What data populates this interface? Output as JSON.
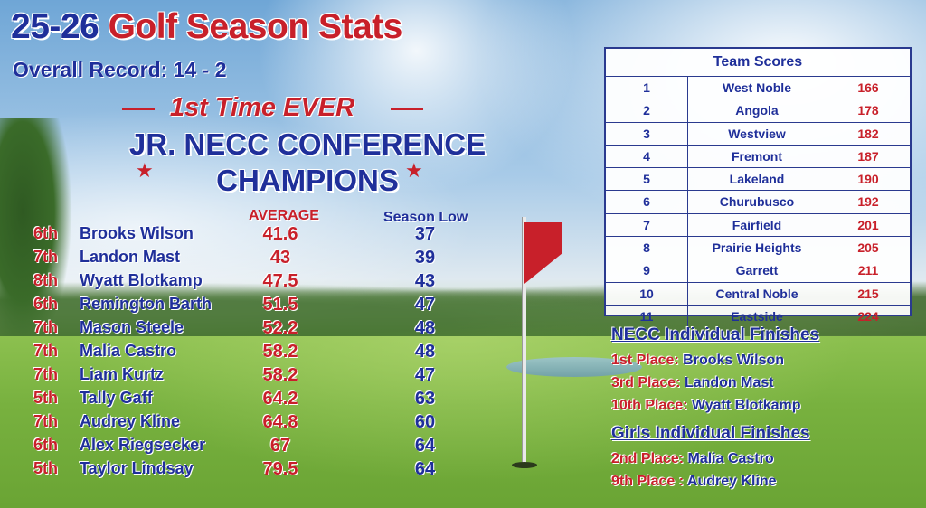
{
  "header": {
    "title_year": "25-26",
    "title_main": "Golf Season Stats",
    "record": "Overall Record: 14 - 2",
    "first_time": "1st Time EVER",
    "conference_line1": "JR. NECC CONFERENCE",
    "conference_line2": "CHAMPIONS",
    "star": "★"
  },
  "players": {
    "avg_header": "AVERAGE",
    "low_header": "Season Low",
    "rows": [
      {
        "grade": "6th",
        "name": "Brooks Wilson",
        "avg": "41.6",
        "low": "37"
      },
      {
        "grade": "7th",
        "name": "Landon Mast",
        "avg": "43",
        "low": "39"
      },
      {
        "grade": "8th",
        "name": "Wyatt Blotkamp",
        "avg": "47.5",
        "low": "43"
      },
      {
        "grade": "6th",
        "name": "Remington Barth",
        "avg": "51.5",
        "low": "47"
      },
      {
        "grade": "7th",
        "name": "Mason Steele",
        "avg": "52.2",
        "low": "48"
      },
      {
        "grade": "7th",
        "name": "Malia Castro",
        "avg": "58.2",
        "low": "48"
      },
      {
        "grade": "7th",
        "name": "Liam Kurtz",
        "avg": "58.2",
        "low": "47"
      },
      {
        "grade": "5th",
        "name": "Tally Gaff",
        "avg": "64.2",
        "low": "63"
      },
      {
        "grade": "7th",
        "name": "Audrey Kline",
        "avg": "64.8",
        "low": "60"
      },
      {
        "grade": "6th",
        "name": "Alex Riegsecker",
        "avg": "67",
        "low": "64"
      },
      {
        "grade": "5th",
        "name": "Taylor Lindsay",
        "avg": "79.5",
        "low": "64"
      }
    ]
  },
  "team_scores": {
    "title": "Team Scores",
    "rows": [
      {
        "rank": "1",
        "team": "West Noble",
        "score": "166"
      },
      {
        "rank": "2",
        "team": "Angola",
        "score": "178"
      },
      {
        "rank": "3",
        "team": "Westview",
        "score": "182"
      },
      {
        "rank": "4",
        "team": "Fremont",
        "score": "187"
      },
      {
        "rank": "5",
        "team": "Lakeland",
        "score": "190"
      },
      {
        "rank": "6",
        "team": "Churubusco",
        "score": "192"
      },
      {
        "rank": "7",
        "team": "Fairfield",
        "score": "201"
      },
      {
        "rank": "8",
        "team": "Prairie Heights",
        "score": "205"
      },
      {
        "rank": "9",
        "team": "Garrett",
        "score": "211"
      },
      {
        "rank": "10",
        "team": "Central Noble",
        "score": "215"
      },
      {
        "rank": "11",
        "team": "Eastside",
        "score": "224"
      }
    ]
  },
  "necc_finishes": {
    "heading": "NECC Individual Finishes",
    "items": [
      {
        "place": "1st Place:",
        "name": "Brooks Wilson"
      },
      {
        "place": "3rd Place:",
        "name": "Landon Mast"
      },
      {
        "place": "10th Place:",
        "name": "Wyatt Blotkamp"
      }
    ]
  },
  "girls_finishes": {
    "heading": "Girls Individual Finishes",
    "items": [
      {
        "place": "2nd Place:",
        "name": "Malia Castro"
      },
      {
        "place": "9th Place :",
        "name": "Audrey Kline"
      }
    ]
  },
  "colors": {
    "primary_blue": "#1f2f9a",
    "accent_red": "#c8202a"
  }
}
